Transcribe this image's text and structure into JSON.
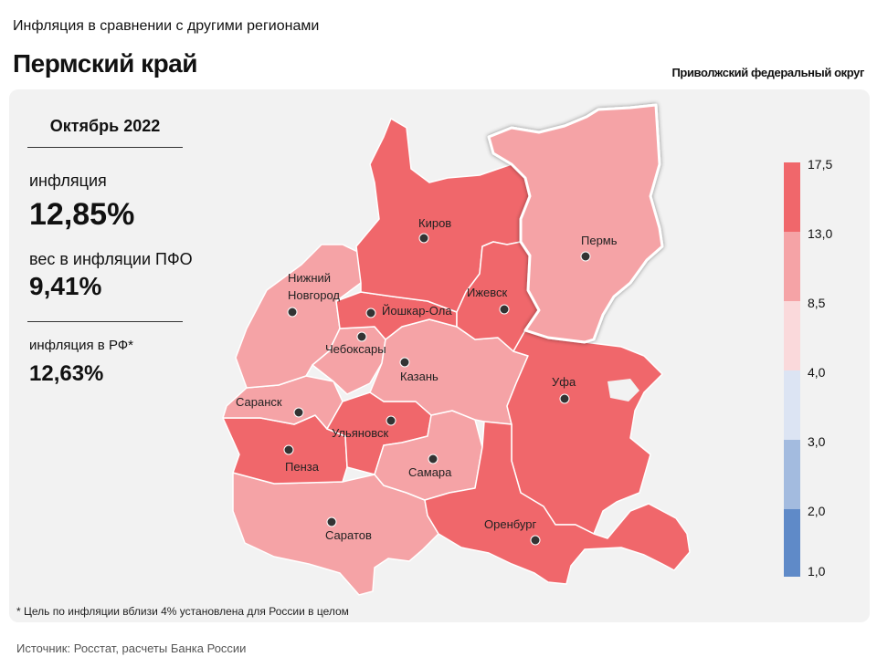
{
  "header": {
    "top_label": "Инфляция в сравнении с другими регионами",
    "region": "Пермский край",
    "district": "Приволжский федеральный округ"
  },
  "info": {
    "period": "Октябрь 2022",
    "inflation_label": "инфляция",
    "inflation_value": "12,85%",
    "weight_label": "вес в инфляции  ПФО",
    "weight_value": "9,41%",
    "rf_label": "инфляция  в РФ*",
    "rf_value": "12,63%"
  },
  "cities": {
    "kirov": "Киров",
    "perm": "Пермь",
    "nnov1": "Нижний",
    "nnov2": "Новгород",
    "yoshkar": "Йошкар-Ола",
    "izhevsk": "Ижевск",
    "cheboksary": "Чебоксары",
    "kazan": "Казань",
    "ufa": "Уфа",
    "saransk": "Саранск",
    "ulyanovsk": "Ульяновск",
    "penza": "Пенза",
    "samara": "Самара",
    "orenburg": "Оренбург",
    "saratov": "Саратов"
  },
  "legend": {
    "ticks": [
      "17,5",
      "13,0",
      "8,5",
      "4,0",
      "3,0",
      "2,0",
      "1,0"
    ],
    "colors": [
      "#f0676b",
      "#f5a3a6",
      "#fad9db",
      "#dce4f3",
      "#a3bbdf",
      "#5f8ac8"
    ]
  },
  "palette": {
    "high": "#f0676b",
    "mid": "#f5a3a6",
    "highlight_border": "#ffffff",
    "panel": "#f2f2f2"
  },
  "footnote": "* Цель по инфляции вблизи 4% установлена для России в целом",
  "source": "Источник: Росстат, расчеты Банка России"
}
